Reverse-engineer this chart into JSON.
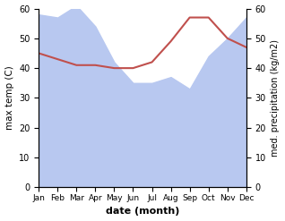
{
  "months": [
    "Jan",
    "Feb",
    "Mar",
    "Apr",
    "May",
    "Jun",
    "Jul",
    "Aug",
    "Sep",
    "Oct",
    "Nov",
    "Dec"
  ],
  "precipitation": [
    58,
    57,
    61,
    54,
    42,
    35,
    35,
    37,
    33,
    44,
    50,
    57
  ],
  "temperature": [
    45,
    43,
    41,
    41,
    40,
    40,
    42,
    49,
    57,
    57,
    50,
    47
  ],
  "temp_color": "#c0504d",
  "precip_color": "#b8c8f0",
  "ylabel_left": "max temp (C)",
  "ylabel_right": "med. precipitation (kg/m2)",
  "xlabel": "date (month)",
  "ylim": [
    0,
    60
  ],
  "yticks": [
    0,
    10,
    20,
    30,
    40,
    50,
    60
  ]
}
